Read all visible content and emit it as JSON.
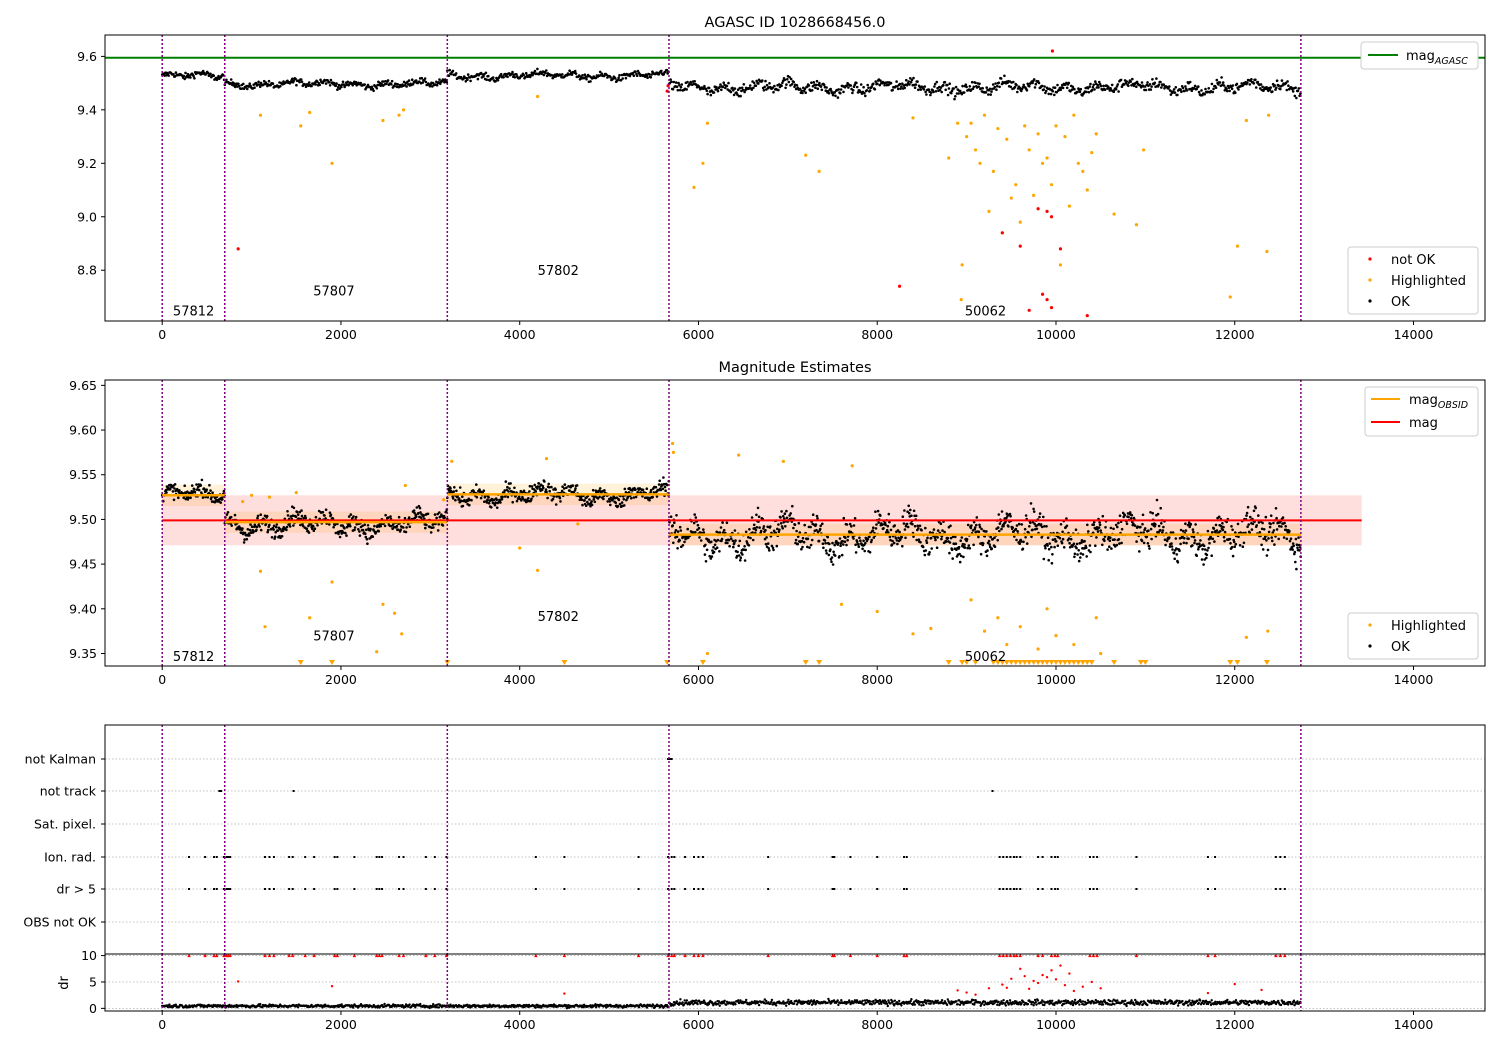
{
  "chart_data": [
    {
      "type": "scatter",
      "title": "AGASC ID 1028668456.0",
      "xlim": [
        -640,
        14800
      ],
      "ylim": [
        8.61,
        9.68
      ],
      "xticks": [
        0,
        2000,
        4000,
        6000,
        8000,
        10000,
        12000,
        14000
      ],
      "yticks": [
        8.8,
        9.0,
        9.2,
        9.4,
        9.6
      ],
      "vlines": [
        0,
        700,
        3190,
        5670,
        12740
      ],
      "hlines": [
        {
          "name": "mag_AGASC",
          "y": 9.595,
          "color": "#008000"
        }
      ],
      "obsid_labels": [
        {
          "text": "57812",
          "x": 120,
          "y": 8.65
        },
        {
          "text": "57807",
          "x": 1690,
          "y": 8.725
        },
        {
          "text": "57802",
          "x": 4200,
          "y": 8.8
        },
        {
          "text": "50062",
          "x": 8980,
          "y": 8.65
        }
      ],
      "legend_top": [
        {
          "label": "mag",
          "sub": "AGASC",
          "color": "#008000"
        }
      ],
      "legend_bottom": [
        {
          "label": "not OK",
          "color": "#ff0000"
        },
        {
          "label": "Highlighted",
          "color": "#ffa500"
        },
        {
          "label": "OK",
          "color": "#000000"
        }
      ],
      "segments": [
        {
          "x0": 0,
          "x1": 700,
          "mean": 9.526,
          "spread": 0.012
        },
        {
          "x0": 700,
          "x1": 3190,
          "mean": 9.497,
          "spread": 0.012
        },
        {
          "x0": 3190,
          "x1": 5670,
          "mean": 9.528,
          "spread": 0.012
        },
        {
          "x0": 5670,
          "x1": 12740,
          "mean": 9.485,
          "spread": 0.02
        }
      ],
      "highlighted_points": [
        [
          1100,
          9.38
        ],
        [
          1550,
          9.34
        ],
        [
          1650,
          9.39
        ],
        [
          1900,
          9.2
        ],
        [
          2470,
          9.36
        ],
        [
          2650,
          9.38
        ],
        [
          2700,
          9.4
        ],
        [
          4200,
          9.45
        ],
        [
          6050,
          9.2
        ],
        [
          5950,
          9.11
        ],
        [
          6100,
          9.35
        ],
        [
          7200,
          9.23
        ],
        [
          7350,
          9.17
        ],
        [
          8400,
          9.37
        ],
        [
          8800,
          9.22
        ],
        [
          8900,
          9.35
        ],
        [
          8950,
          8.82
        ],
        [
          9000,
          9.3
        ],
        [
          9050,
          9.35
        ],
        [
          9100,
          9.25
        ],
        [
          9150,
          9.2
        ],
        [
          9200,
          9.38
        ],
        [
          9250,
          9.02
        ],
        [
          9300,
          9.17
        ],
        [
          9350,
          9.33
        ],
        [
          9400,
          8.94
        ],
        [
          9450,
          9.29
        ],
        [
          9500,
          9.07
        ],
        [
          9550,
          9.12
        ],
        [
          9600,
          8.98
        ],
        [
          9650,
          9.34
        ],
        [
          9700,
          9.25
        ],
        [
          9750,
          9.08
        ],
        [
          9800,
          9.31
        ],
        [
          9850,
          9.2
        ],
        [
          9900,
          9.22
        ],
        [
          9950,
          9.12
        ],
        [
          10000,
          9.34
        ],
        [
          10050,
          8.82
        ],
        [
          10100,
          9.3
        ],
        [
          10150,
          9.04
        ],
        [
          10200,
          9.38
        ],
        [
          10250,
          9.2
        ],
        [
          10300,
          9.17
        ],
        [
          10350,
          9.1
        ],
        [
          10400,
          9.24
        ],
        [
          10450,
          9.31
        ],
        [
          10650,
          9.01
        ],
        [
          10900,
          8.97
        ],
        [
          10980,
          9.25
        ],
        [
          11950,
          8.7
        ],
        [
          12030,
          8.89
        ],
        [
          12130,
          9.36
        ],
        [
          12360,
          8.87
        ],
        [
          12380,
          9.38
        ],
        [
          8940,
          8.69
        ]
      ],
      "notok_points": [
        [
          850,
          8.88
        ],
        [
          8250,
          8.74
        ],
        [
          9400,
          8.94
        ],
        [
          9600,
          8.89
        ],
        [
          9800,
          9.03
        ],
        [
          9900,
          9.02
        ],
        [
          9950,
          9.0
        ],
        [
          10050,
          8.88
        ],
        [
          9850,
          8.71
        ],
        [
          9900,
          8.69
        ],
        [
          9700,
          8.65
        ],
        [
          9950,
          8.66
        ],
        [
          10350,
          8.63
        ],
        [
          9960,
          9.62
        ],
        [
          5650,
          9.47
        ],
        [
          5660,
          9.49
        ]
      ]
    },
    {
      "type": "scatter",
      "title": "Magnitude Estimates",
      "xlim": [
        -640,
        14800
      ],
      "ylim": [
        9.336,
        9.656
      ],
      "xticks": [
        0,
        2000,
        4000,
        6000,
        8000,
        10000,
        12000,
        14000
      ],
      "yticks": [
        9.35,
        9.4,
        9.45,
        9.5,
        9.55,
        9.6,
        9.65
      ],
      "vlines": [
        0,
        700,
        3190,
        5670,
        12740
      ],
      "mag": {
        "value": 9.499,
        "band": [
          9.471,
          9.527
        ],
        "x0": 0,
        "x1": 13420,
        "color": "#ff0000"
      },
      "mag_obsid": [
        {
          "x0": 0,
          "x1": 700,
          "y": 9.527
        },
        {
          "x0": 700,
          "x1": 3190,
          "y": 9.497
        },
        {
          "x0": 3190,
          "x1": 5670,
          "y": 9.528
        },
        {
          "x0": 5670,
          "x1": 12740,
          "y": 9.483
        }
      ],
      "obsid_labels": [
        {
          "text": "57812",
          "x": 120,
          "y": 9.347
        },
        {
          "text": "57807",
          "x": 1690,
          "y": 9.37
        },
        {
          "text": "57802",
          "x": 4200,
          "y": 9.392
        },
        {
          "text": "50062",
          "x": 8980,
          "y": 9.347
        }
      ],
      "legend_top": [
        {
          "label": "mag",
          "sub": "OBSID",
          "color": "#ffa500"
        },
        {
          "label": "mag",
          "sub": "",
          "color": "#ff0000"
        }
      ],
      "legend_bottom": [
        {
          "label": "Highlighted",
          "color": "#ffa500"
        },
        {
          "label": "OK",
          "color": "#000000"
        }
      ],
      "segments": [
        {
          "x0": 0,
          "x1": 700,
          "mean": 9.527,
          "spread": 0.008
        },
        {
          "x0": 700,
          "x1": 3190,
          "mean": 9.495,
          "spread": 0.01
        },
        {
          "x0": 3190,
          "x1": 5670,
          "mean": 9.528,
          "spread": 0.009
        },
        {
          "x0": 5670,
          "x1": 12740,
          "mean": 9.483,
          "spread": 0.017
        }
      ],
      "highlighted_points": [
        [
          1100,
          9.442
        ],
        [
          1150,
          9.38
        ],
        [
          1650,
          9.39
        ],
        [
          1900,
          9.43
        ],
        [
          2470,
          9.405
        ],
        [
          2600,
          9.395
        ],
        [
          2680,
          9.372
        ],
        [
          2400,
          9.352
        ],
        [
          4000,
          9.468
        ],
        [
          4200,
          9.443
        ],
        [
          6100,
          9.35
        ],
        [
          7600,
          9.405
        ],
        [
          8000,
          9.397
        ],
        [
          8400,
          9.372
        ],
        [
          8600,
          9.378
        ],
        [
          9050,
          9.41
        ],
        [
          9200,
          9.375
        ],
        [
          9350,
          9.39
        ],
        [
          9450,
          9.36
        ],
        [
          9600,
          9.38
        ],
        [
          9800,
          9.355
        ],
        [
          9900,
          9.4
        ],
        [
          10000,
          9.37
        ],
        [
          10200,
          9.36
        ],
        [
          10450,
          9.39
        ],
        [
          10500,
          9.35
        ],
        [
          12130,
          9.368
        ],
        [
          12370,
          9.375
        ],
        [
          5710,
          9.585
        ],
        [
          5720,
          9.575
        ],
        [
          6450,
          9.572
        ],
        [
          6950,
          9.565
        ],
        [
          7720,
          9.56
        ],
        [
          3240,
          9.565
        ],
        [
          4300,
          9.568
        ],
        [
          1000,
          9.527
        ],
        [
          2720,
          9.538
        ],
        [
          3150,
          9.522
        ],
        [
          4650,
          9.495
        ],
        [
          900,
          9.52
        ],
        [
          1200,
          9.525
        ],
        [
          1500,
          9.53
        ]
      ],
      "triangles_x": [
        1550,
        1900,
        3190,
        4500,
        5650,
        6050,
        7200,
        7350,
        8800,
        8950,
        9000,
        9100,
        9300,
        9350,
        9400,
        9450,
        9500,
        9550,
        9600,
        9650,
        9700,
        9750,
        9800,
        9850,
        9900,
        9950,
        10000,
        10050,
        10100,
        10150,
        10200,
        10250,
        10300,
        10350,
        10400,
        10650,
        10950,
        11000,
        11950,
        12030,
        12360
      ]
    },
    {
      "type": "scatter",
      "title": "",
      "xlim": [
        -640,
        14800
      ],
      "vlines": [
        0,
        700,
        3190,
        5670,
        12740
      ],
      "flag_rows": [
        "not Kalman",
        "not track",
        "Sat. pixel.",
        "Ion. rad.",
        "dr > 5",
        "OBS not OK"
      ],
      "flag_points": {
        "not Kalman": [
          5660,
          5680,
          5700
        ],
        "not track": [
          640,
          660,
          1470,
          9290
        ],
        "Sat. pixel.": [],
        "Ion. rad.": [
          300,
          480,
          580,
          610,
          690,
          720,
          740,
          760,
          1150,
          1200,
          1250,
          1420,
          1460,
          1600,
          1700,
          1930,
          1960,
          2150,
          2400,
          2430,
          2460,
          2650,
          2700,
          2950,
          3050,
          3180,
          4180,
          4500,
          5330,
          5660,
          5700,
          5730,
          5850,
          5950,
          6000,
          6050,
          6780,
          7500,
          7520,
          7700,
          8000,
          8300,
          8330,
          9370,
          9410,
          9450,
          9490,
          9530,
          9560,
          9600,
          9800,
          9850,
          9950,
          9990,
          10020,
          10380,
          10420,
          10460,
          10900,
          11700,
          11780,
          12460,
          12510,
          12560
        ],
        "dr > 5": [
          300,
          480,
          580,
          610,
          690,
          720,
          740,
          760,
          1150,
          1200,
          1250,
          1420,
          1460,
          1600,
          1700,
          1930,
          1960,
          2150,
          2400,
          2430,
          2460,
          2650,
          2700,
          2950,
          3050,
          3180,
          4180,
          4500,
          5330,
          5660,
          5700,
          5730,
          5850,
          5950,
          6000,
          6050,
          6780,
          7500,
          7520,
          7700,
          8000,
          8300,
          8330,
          9370,
          9410,
          9450,
          9490,
          9530,
          9560,
          9600,
          9800,
          9850,
          9950,
          9990,
          10020,
          10380,
          10420,
          10460,
          10900,
          11700,
          11780,
          12460,
          12510,
          12560
        ],
        "OBS not OK": []
      }
    },
    {
      "type": "scatter",
      "title": "",
      "ylabel": "dr",
      "xlim": [
        -640,
        14800
      ],
      "ylim": [
        -0.5,
        10.3
      ],
      "xticks": [
        0,
        2000,
        4000,
        6000,
        8000,
        10000,
        12000,
        14000
      ],
      "yticks": [
        0,
        5,
        10
      ],
      "vlines": [
        0,
        700,
        3190,
        5670,
        12740
      ],
      "baseline": [
        {
          "x0": 0,
          "x1": 5670,
          "mean": 0.45,
          "spread": 0.3
        },
        {
          "x0": 5670,
          "x1": 12740,
          "mean": 1.1,
          "spread": 0.5
        }
      ],
      "red_points": [
        [
          850,
          5.1
        ],
        [
          1900,
          4.2
        ],
        [
          4500,
          2.8
        ],
        [
          8900,
          3.4
        ],
        [
          9000,
          3.0
        ],
        [
          9100,
          2.6
        ],
        [
          9250,
          3.8
        ],
        [
          9400,
          4.5
        ],
        [
          9450,
          3.9
        ],
        [
          9500,
          5.6
        ],
        [
          9600,
          7.5
        ],
        [
          9650,
          6.1
        ],
        [
          9700,
          3.7
        ],
        [
          9750,
          5.2
        ],
        [
          9800,
          4.8
        ],
        [
          9850,
          6.3
        ],
        [
          9900,
          5.9
        ],
        [
          9950,
          7.2
        ],
        [
          10000,
          5.5
        ],
        [
          10050,
          8.1
        ],
        [
          10100,
          4.4
        ],
        [
          10150,
          6.6
        ],
        [
          10200,
          3.3
        ],
        [
          10300,
          4.1
        ],
        [
          10400,
          5.0
        ],
        [
          10500,
          3.8
        ],
        [
          11700,
          2.9
        ],
        [
          12000,
          4.6
        ],
        [
          12300,
          3.5
        ]
      ]
    }
  ]
}
